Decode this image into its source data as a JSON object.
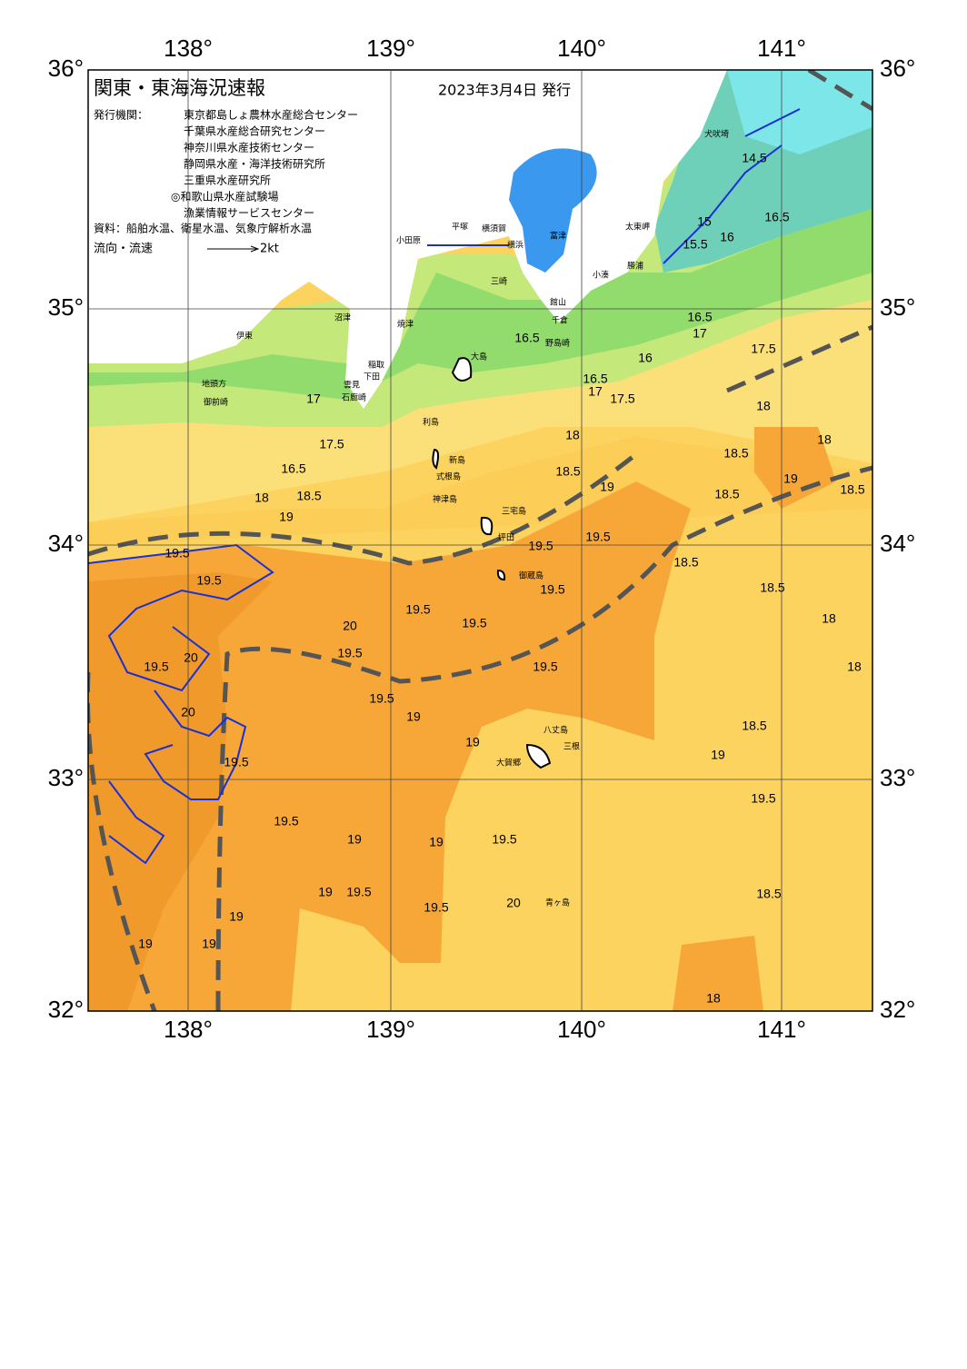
{
  "header": {
    "title": "関東・東海海況速報",
    "date": "2023年3月4日 発行"
  },
  "issuers": {
    "label": "発行機関：",
    "list": [
      "東京都島しょ農林水産総合センター",
      "千葉県水産総合研究センター",
      "神奈川県水産技術センター",
      "静岡県水産・海洋技術研究所",
      "三重県水産研究所",
      "◎和歌山県水産試験場",
      "漁業情報サービスセンター"
    ]
  },
  "sources": "資料：船舶水温、衛星水温、気象庁解析水温",
  "flow_legend": {
    "label": "流向・流速",
    "scale": "2kt"
  },
  "axes": {
    "lon_labels": [
      "138°",
      "139°",
      "140°",
      "141°"
    ],
    "lat_labels": [
      "36°",
      "35°",
      "34°",
      "33°",
      "32°"
    ]
  },
  "places": [
    "小田原",
    "平塚",
    "横須賀",
    "横浜",
    "富津",
    "三崎",
    "館山",
    "千倉",
    "野島崎",
    "小湊",
    "勝浦",
    "太東岬",
    "犬吠埼",
    "沼津",
    "伊東",
    "焼津",
    "稲取",
    "下田",
    "雲見",
    "石廊崎",
    "地頭方",
    "御前崎",
    "大島",
    "利島",
    "新島",
    "式根島",
    "神津島",
    "三宅島",
    "坪田",
    "御蔵島",
    "八丈島",
    "三根",
    "大賀郷",
    "青ヶ島"
  ],
  "contour_labels": [
    "14.5",
    "15",
    "15.5",
    "16",
    "16.5",
    "16.5",
    "17",
    "17.5",
    "18",
    "16.5",
    "16",
    "17",
    "16.5",
    "17.5",
    "17",
    "17.5",
    "16.5",
    "18",
    "18.5",
    "18",
    "18",
    "18.5",
    "18.5",
    "19",
    "19",
    "18.5",
    "18.5",
    "19",
    "19.5",
    "19.5",
    "19.5",
    "20",
    "20",
    "20",
    "19.5",
    "19.5",
    "19.5",
    "19.5",
    "19.5",
    "19.5",
    "19.5",
    "19.5",
    "19",
    "19",
    "18.5",
    "18.5",
    "18",
    "18",
    "18.5",
    "19",
    "19.5",
    "19.5",
    "19.5",
    "19.5",
    "19",
    "19",
    "19",
    "19.5",
    "19.5",
    "20",
    "18.5",
    "19",
    "19",
    "19",
    "18"
  ]
}
